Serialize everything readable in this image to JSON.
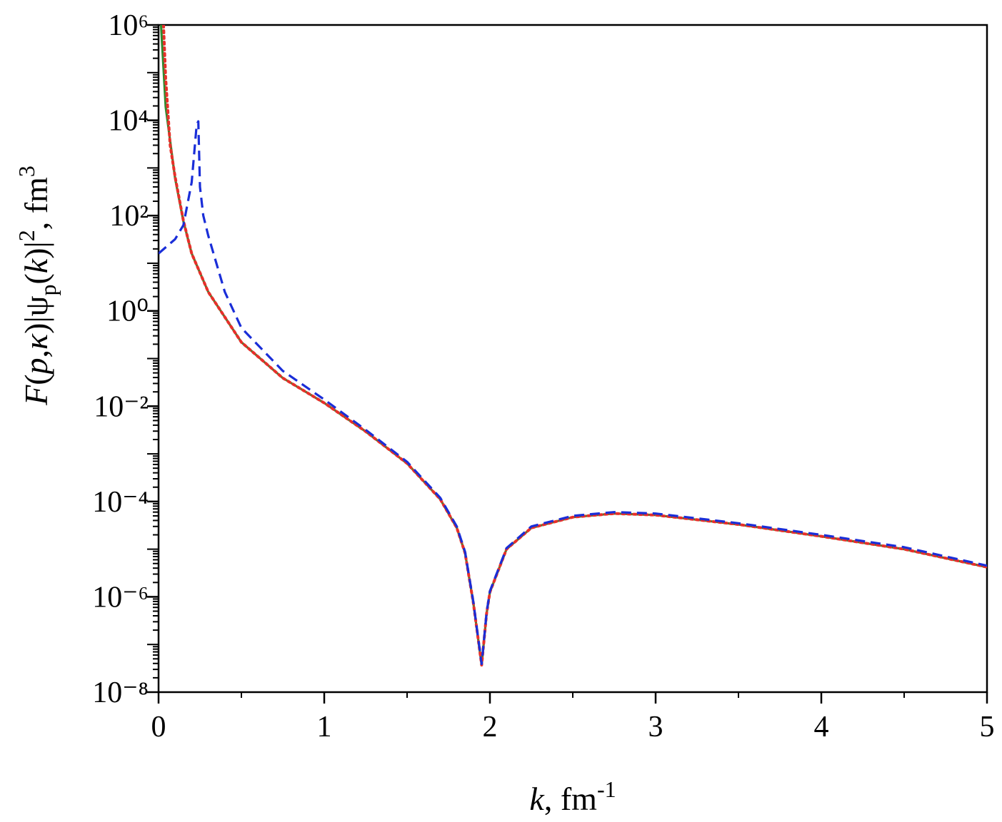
{
  "chart_data": {
    "type": "line",
    "xlabel": [
      "k",
      ",  fm",
      "-1"
    ],
    "ylabel": [
      "F",
      "(",
      "p",
      ",",
      "κ",
      ")|ψ",
      "p",
      "(",
      "k",
      ")|",
      "2",
      ",   fm",
      "3"
    ],
    "xlim": [
      0,
      5
    ],
    "xticks": [
      0,
      1,
      2,
      3,
      4,
      5
    ],
    "ylim": [
      1e-08,
      1000000.0
    ],
    "yscale": "log",
    "yticks": [
      {
        "value": 1000000.0,
        "label": "10⁶"
      },
      {
        "value": 10000.0,
        "label": "10⁴"
      },
      {
        "value": 100,
        "label": "10²"
      },
      {
        "value": 1,
        "label": "10⁰"
      },
      {
        "value": 0.01,
        "label": "10⁻²"
      },
      {
        "value": 0.0001,
        "label": "10⁻⁴"
      },
      {
        "value": 1e-06,
        "label": "10⁻⁶"
      },
      {
        "value": 1e-08,
        "label": "10⁻⁸"
      }
    ],
    "series": [
      {
        "color": "#2e8b2e",
        "dash": "solid",
        "x": [
          0.015,
          0.043,
          0.1,
          0.15,
          0.2,
          0.3,
          0.5,
          0.75,
          1.0,
          1.25,
          1.5,
          1.7,
          1.8,
          1.85,
          1.9,
          1.95,
          1.98,
          2.0,
          2.1,
          2.25,
          2.5,
          2.75,
          3.0,
          3.5,
          4.0,
          4.5,
          5.0
        ],
        "values": [
          1000000.0,
          19000.0,
          600,
          76,
          16,
          2.5,
          0.22,
          0.039,
          0.0117,
          0.00295,
          0.00063,
          0.000112,
          2.8e-05,
          8.3e-06,
          7.4e-07,
          3.7e-08,
          4.5e-07,
          1.26e-06,
          1e-05,
          2.8e-05,
          4.7e-05,
          5.6e-05,
          5.2e-05,
          3.3e-05,
          1.86e-05,
          1e-05,
          4.2e-06
        ]
      },
      {
        "color": "#e8302a",
        "dash": "dotted",
        "x": [
          0.03,
          0.043,
          0.07,
          0.1,
          0.15,
          0.2,
          0.3,
          0.5,
          0.75,
          1.0,
          1.25,
          1.5,
          1.7,
          1.8,
          1.85,
          1.9,
          1.95,
          1.98,
          2.0,
          2.1,
          2.25,
          2.5,
          2.75,
          3.0,
          3.5,
          4.0,
          4.5,
          5.0
        ],
        "values": [
          1000000.0,
          76000.0,
          3000.0,
          650,
          78,
          16,
          2.5,
          0.22,
          0.039,
          0.0117,
          0.00295,
          0.00063,
          0.000112,
          2.8e-05,
          8.3e-06,
          7.4e-07,
          3.7e-08,
          4.5e-07,
          1.26e-06,
          1e-05,
          2.8e-05,
          4.7e-05,
          5.6e-05,
          5.2e-05,
          3.3e-05,
          1.86e-05,
          1e-05,
          4.2e-06
        ]
      },
      {
        "color": "#1a2ed8",
        "dash": "dashed",
        "x": [
          0,
          0.1,
          0.15,
          0.2,
          0.23,
          0.24,
          0.25,
          0.27,
          0.3,
          0.4,
          0.5,
          0.75,
          1.0,
          1.25,
          1.5,
          1.7,
          1.8,
          1.85,
          1.9,
          1.95,
          1.98,
          2.0,
          2.1,
          2.25,
          2.5,
          2.75,
          3.0,
          3.5,
          4.0,
          4.5,
          5.0
        ],
        "values": [
          16,
          32,
          63,
          500,
          8000,
          9500,
          400,
          100,
          38,
          2.5,
          0.44,
          0.055,
          0.0138,
          0.0032,
          0.00068,
          0.00012,
          3e-05,
          8.8e-06,
          7.8e-07,
          3.9e-08,
          4.7e-07,
          1.32e-06,
          1.05e-05,
          3e-05,
          5e-05,
          6e-05,
          5.6e-05,
          3.5e-05,
          2e-05,
          1.1e-05,
          4.5e-06
        ]
      }
    ]
  }
}
